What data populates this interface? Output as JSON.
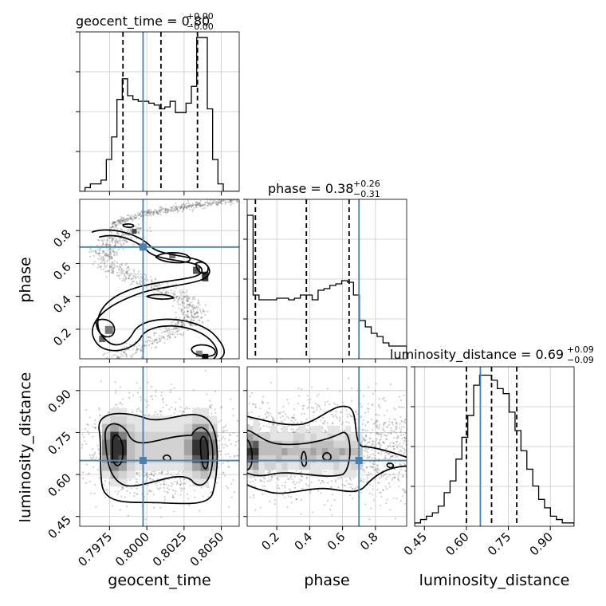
{
  "chart_data": {
    "type": "corner",
    "parameters": [
      "geocent_time",
      "phase",
      "luminosity_distance"
    ],
    "truth": {
      "geocent_time": 0.79975,
      "phase": 0.7,
      "luminosity_distance": 0.65
    },
    "truth_color": "#4682b4",
    "titles": [
      {
        "param": "geocent_time",
        "text": "geocent_time = 0.80",
        "plus": "+0.00",
        "minus": "−0.00"
      },
      {
        "param": "phase",
        "text": "phase = 0.38",
        "plus": "+0.26",
        "minus": "−0.31"
      },
      {
        "param": "luminosity_distance",
        "text": "luminosity_distance = 0.69",
        "plus": "+0.09",
        "minus": "−0.09"
      }
    ],
    "axes": {
      "geocent_time": {
        "range": [
          0.7955,
          0.8062
        ],
        "ticks": [
          0.7975,
          0.8,
          0.8025,
          0.805
        ],
        "tick_labels": [
          "0.7975",
          "0.8000",
          "0.8025",
          "0.8050"
        ],
        "xlabel": "geocent_time"
      },
      "phase": {
        "range": [
          0.02,
          0.99
        ],
        "ticks": [
          0.2,
          0.4,
          0.6,
          0.8
        ],
        "tick_labels": [
          "0.2",
          "0.4",
          "0.6",
          "0.8"
        ],
        "xlabel": "phase",
        "ylabel": "phase"
      },
      "luminosity_distance": {
        "range": [
          0.415,
          0.985
        ],
        "ticks": [
          0.45,
          0.6,
          0.75,
          0.9
        ],
        "tick_labels": [
          "0.45",
          "0.60",
          "0.75",
          "0.90"
        ],
        "xlabel": "luminosity_distance",
        "ylabel": "luminosity_distance"
      }
    },
    "histograms": {
      "geocent_time": {
        "quantiles": [
          0.7984,
          0.80095,
          0.8034
        ],
        "counts": [
          0.0,
          0.02,
          0.04,
          0.04,
          0.06,
          0.17,
          0.29,
          0.49,
          0.6,
          0.51,
          0.49,
          0.48,
          0.48,
          0.47,
          0.46,
          0.44,
          0.45,
          0.48,
          0.42,
          0.42,
          0.47,
          0.56,
          0.82,
          0.82,
          0.44,
          0.17,
          0.04,
          0.0,
          0.0,
          0.0
        ],
        "ylim": [
          0,
          0.85
        ]
      },
      "phase": {
        "quantiles": [
          0.07,
          0.38,
          0.64
        ],
        "counts": [
          0.9,
          0.4,
          0.37,
          0.37,
          0.37,
          0.38,
          0.38,
          0.37,
          0.38,
          0.4,
          0.4,
          0.37,
          0.43,
          0.44,
          0.46,
          0.47,
          0.49,
          0.48,
          0.4,
          0.24,
          0.2,
          0.16,
          0.14,
          0.1,
          0.08,
          0.08,
          0.08
        ],
        "ylim": [
          0,
          1.0
        ]
      },
      "luminosity_distance": {
        "quantiles": [
          0.6,
          0.69,
          0.78
        ],
        "counts": [
          0.02,
          0.04,
          0.06,
          0.08,
          0.12,
          0.2,
          0.27,
          0.4,
          0.53,
          0.66,
          0.84,
          0.9,
          0.9,
          0.87,
          0.82,
          0.79,
          0.68,
          0.57,
          0.45,
          0.34,
          0.24,
          0.16,
          0.11,
          0.06,
          0.04,
          0.02,
          0.02
        ],
        "ylim": [
          0,
          0.95
        ]
      }
    },
    "grid": true
  }
}
